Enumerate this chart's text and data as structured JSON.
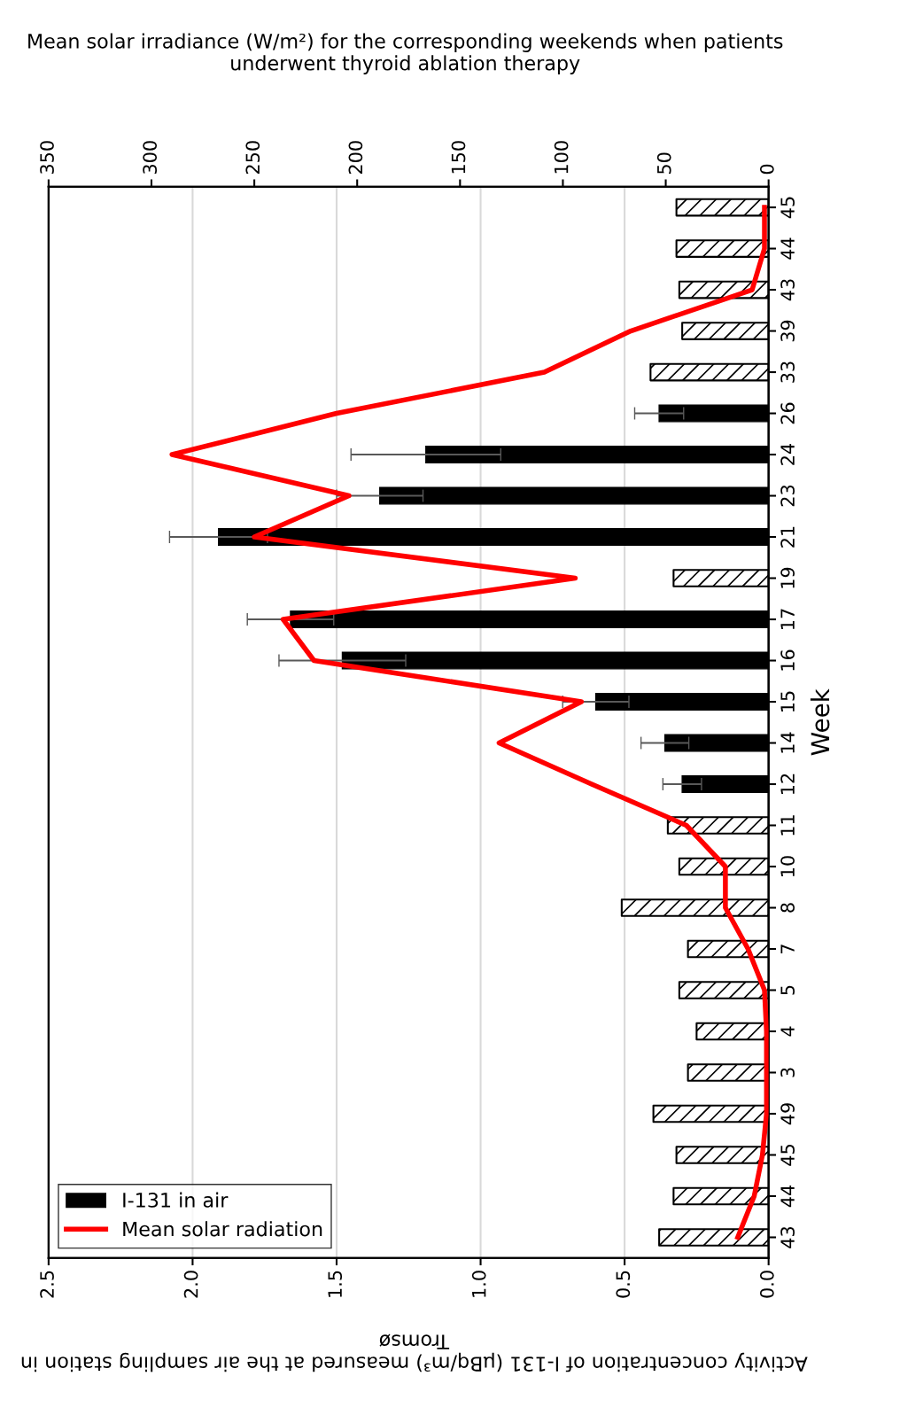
{
  "chart_data": {
    "type": "bar",
    "orientation": "horizontal",
    "xlabel": "Activity concentration of I-131 (µBq/m³) measured at the air sampling station in Tromsø",
    "x2label": "Mean solar irradiance (W/m²) for the corresponding weekends when patients underwent thyroid ablation therapy",
    "ylabel": "Week",
    "categories": [
      "45",
      "44",
      "43",
      "39",
      "33",
      "26",
      "24",
      "23",
      "21",
      "19",
      "17",
      "16",
      "15",
      "14",
      "12",
      "11",
      "10",
      "8",
      "7",
      "5",
      "4",
      "3",
      "49",
      "45",
      "44",
      "43"
    ],
    "series": [
      {
        "name": "I-131 in air",
        "color": "#000000",
        "colors": [
          "#ffffff",
          "#ffffff",
          "#ffffff",
          "#ffffff",
          "#ffffff",
          "#000000",
          "#000000",
          "#000000",
          "#000000",
          "#ffffff",
          "#000000",
          "#000000",
          "#000000",
          "#000000",
          "#000000",
          "#ffffff",
          "#ffffff",
          "#ffffff",
          "#ffffff",
          "#ffffff",
          "#ffffff",
          "#ffffff",
          "#ffffff",
          "#ffffff",
          "#ffffff",
          "#ffffff"
        ],
        "values": [
          0.32,
          0.32,
          0.31,
          0.3,
          0.41,
          0.38,
          1.19,
          1.35,
          1.91,
          0.33,
          1.66,
          1.48,
          0.6,
          0.36,
          0.3,
          0.35,
          0.31,
          0.51,
          0.28,
          0.31,
          0.25,
          0.28,
          0.4,
          0.32,
          0.33,
          0.38
        ],
        "errors": [
          null,
          null,
          null,
          null,
          null,
          0.085,
          0.26,
          0.15,
          0.17,
          null,
          0.15,
          0.22,
          0.115,
          0.083,
          0.067,
          null,
          null,
          null,
          null,
          null,
          null,
          null,
          null,
          null,
          null,
          null
        ]
      },
      {
        "name": "Mean solar radiation",
        "type": "line",
        "axis": "x2",
        "color": "#ff0000",
        "values": [
          2,
          2,
          8,
          67,
          109,
          210,
          290,
          204,
          250,
          94,
          236,
          221,
          91,
          131,
          86,
          40,
          21,
          21,
          10,
          2,
          1,
          1,
          1,
          3,
          7,
          15
        ]
      }
    ],
    "xlim": [
      2.5,
      0
    ],
    "xticks": [
      {
        "value": 0,
        "label": "0.0"
      },
      {
        "value": 0.5,
        "label": "0.5"
      },
      {
        "value": 1,
        "label": "1.0"
      },
      {
        "value": 1.5,
        "label": "1.5"
      },
      {
        "value": 2,
        "label": "2.0"
      },
      {
        "value": 2.5,
        "label": "2.5"
      }
    ],
    "x2lim": [
      350,
      0
    ],
    "x2ticks": [
      0,
      50,
      100,
      150,
      200,
      250,
      300,
      350
    ],
    "grid": "x",
    "legend": "bottom left",
    "marker": "none",
    "line_style": "solid"
  }
}
